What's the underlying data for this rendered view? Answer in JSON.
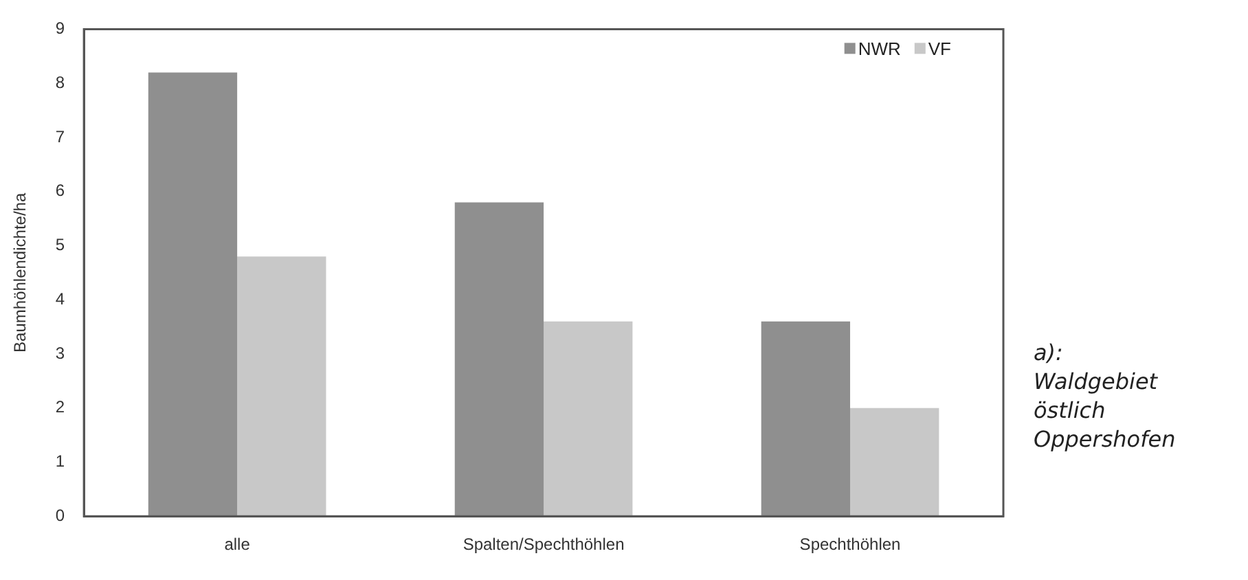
{
  "chart_data": {
    "type": "bar",
    "ylabel": "Baumhöhlendichte/ha",
    "categories": [
      "alle",
      "Spalten/Spechthöhlen",
      "Spechthöhlen"
    ],
    "series": [
      {
        "name": "NWR",
        "color": "#8f8f8f",
        "values": [
          8.2,
          5.8,
          3.6
        ]
      },
      {
        "name": "VF",
        "color": "#c8c8c8",
        "values": [
          4.8,
          3.6,
          2.0
        ]
      }
    ],
    "ylim": [
      0,
      9
    ],
    "yticks": [
      0,
      1,
      2,
      3,
      4,
      5,
      6,
      7,
      8,
      9
    ],
    "grid": false,
    "legend": "top right",
    "annotations": [
      "a): Waldgebiet östlich Oppershofen"
    ]
  }
}
